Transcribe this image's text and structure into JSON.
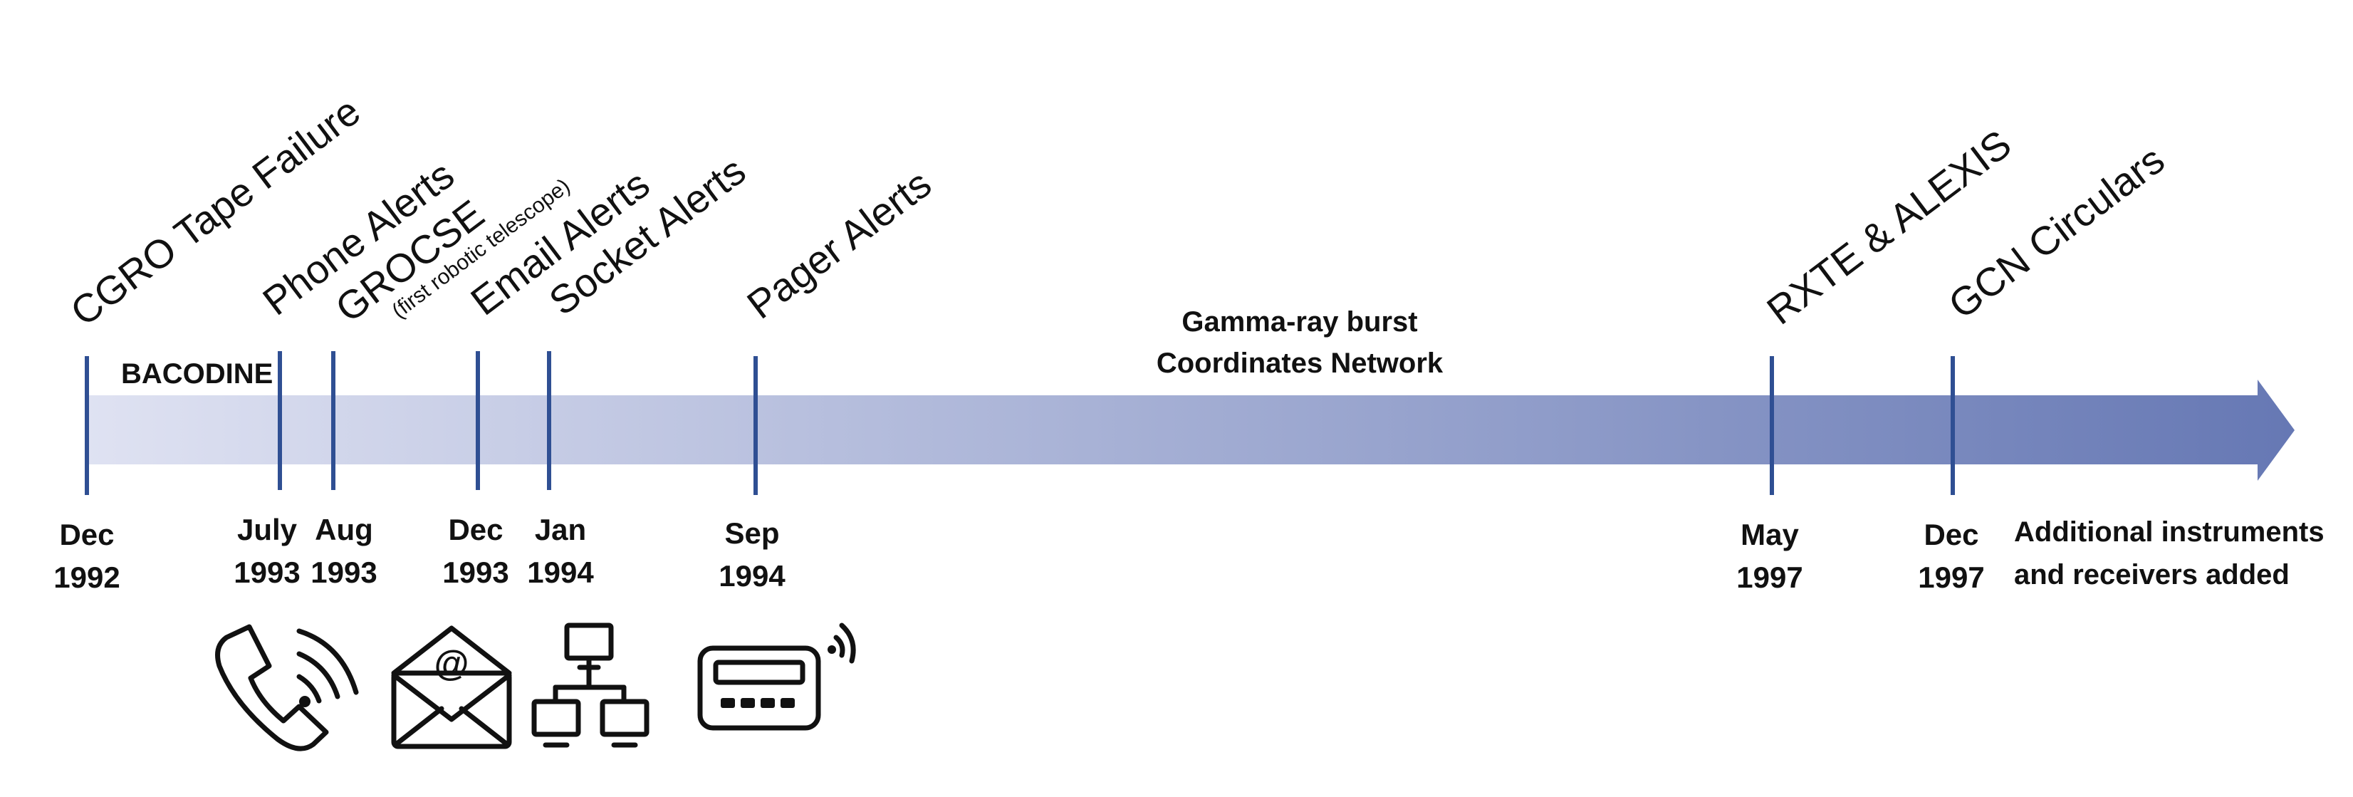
{
  "colors": {
    "arrow_start": "#dfe2f2",
    "arrow_end": "#6678b4",
    "tick": "#2f4f93",
    "ink": "#111111"
  },
  "labels": {
    "bacodine": "BACODINE",
    "network_line1": "Gamma-ray burst",
    "network_line2": "Coordinates Network",
    "additional_line1": "Additional instruments",
    "additional_line2": "and receivers added"
  },
  "events": [
    {
      "title": "CGRO Tape Failure",
      "month": "Dec",
      "year": "1992"
    },
    {
      "title": "Phone Alerts",
      "month": "July",
      "year": "1993",
      "icon": "phone-icon"
    },
    {
      "title": "GROCSE",
      "subtitle": "(first robotic telescope)",
      "month": "Aug",
      "year": "1993"
    },
    {
      "title": "Email Alerts",
      "month": "Dec",
      "year": "1993",
      "icon": "email-icon"
    },
    {
      "title": "Socket Alerts",
      "month": "Jan",
      "year": "1994",
      "icon": "network-icon"
    },
    {
      "title": "Pager Alerts",
      "month": "Sep",
      "year": "1994",
      "icon": "pager-icon"
    },
    {
      "title": "RXTE & ALEXIS",
      "month": "May",
      "year": "1997"
    },
    {
      "title": "GCN Circulars",
      "month": "Dec",
      "year": "1997"
    }
  ]
}
